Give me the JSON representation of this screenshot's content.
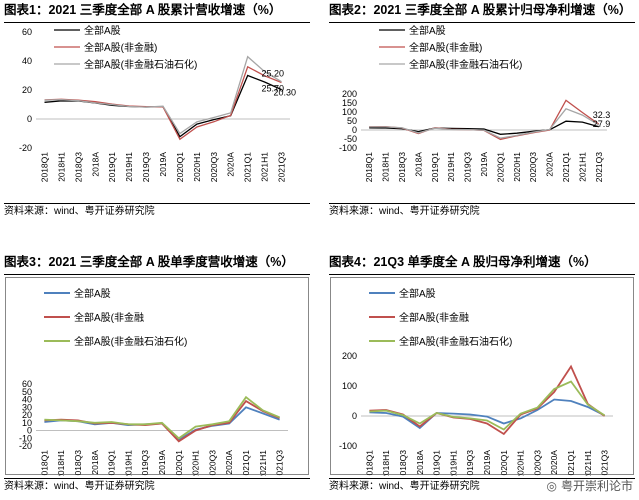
{
  "chart_data": [
    {
      "type": "line",
      "title": "图表1：2021 三季度全部 A 股累计营收增速（%）",
      "source": "资料来源：wind、粤开证券研究院",
      "categories": [
        "2018Q1",
        "2018H1",
        "2018Q3",
        "2018A",
        "2019Q1",
        "2019H1",
        "2019Q3",
        "2019A",
        "2020Q1",
        "2020H1",
        "2020Q3",
        "2020A",
        "2021Q1",
        "2021H1",
        "2021Q3"
      ],
      "ylim": [
        -20,
        60
      ],
      "yticks": [
        "-20",
        "0",
        "20",
        "40",
        "60"
      ],
      "grid": false,
      "framed": false,
      "legend_position": "top-center",
      "series": [
        {
          "name": "全部A股",
          "color": "#000000",
          "values": [
            11.5,
            12.5,
            12.4,
            11,
            9.4,
            8.6,
            8.3,
            8.5,
            -12.2,
            -3.5,
            -0.4,
            2.3,
            30,
            25.5,
            20.3
          ]
        },
        {
          "name": "全部A股(非金融)",
          "color": "#c0504d",
          "values": [
            13.2,
            13.6,
            13,
            11.9,
            10.3,
            9,
            8.5,
            8.4,
            -14,
            -5.5,
            -1.9,
            2.5,
            36,
            29.8,
            25.2
          ]
        },
        {
          "name": "全部A股(非金融石油石化)",
          "color": "#a6a6a6",
          "values": [
            13,
            13.3,
            12.6,
            11.1,
            9.9,
            8.6,
            8.2,
            8.8,
            -10,
            -2,
            1,
            4.2,
            43,
            32.7,
            25.7
          ]
        }
      ],
      "data_labels": [
        "25.20",
        "20.30",
        "25.70"
      ]
    },
    {
      "type": "line",
      "title": "图表2：2021 三季度全部 A 股累计归母净利增速（%）",
      "source": "资料来源：wind、粤开证券研究院",
      "categories": [
        "2018Q1",
        "2018H1",
        "2018Q3",
        "2018A",
        "2019Q1",
        "2019H1",
        "2019Q3",
        "2019A",
        "2020Q1",
        "2020H1",
        "2020Q3",
        "2020A",
        "2021Q1",
        "2021H1",
        "2021Q3"
      ],
      "ylim": [
        -100,
        200
      ],
      "yticks": [
        "-100",
        "-50",
        "0",
        "50",
        "100",
        "150",
        "200"
      ],
      "grid": false,
      "framed": false,
      "legend_position": "top-center",
      "series": [
        {
          "name": "全部A股",
          "color": "#000000",
          "values": [
            12,
            11,
            7.5,
            -9,
            11,
            9,
            8,
            5.4,
            -24,
            -18,
            -7,
            1.2,
            49,
            44,
            18
          ]
        },
        {
          "name": "全部A股(非金融)",
          "color": "#c0504d",
          "values": [
            18,
            19,
            11,
            -20,
            12,
            4,
            2,
            -2,
            -52,
            -32,
            -15,
            0,
            165,
            97,
            32.3
          ]
        },
        {
          "name": "全部A股(非金融石油石化)",
          "color": "#a6a6a6",
          "values": [
            17,
            17,
            12,
            -16,
            10,
            3,
            2,
            -1,
            -45,
            -30,
            -12,
            3,
            118,
            83,
            27.9
          ]
        }
      ],
      "data_labels": [
        "32.3",
        "27.9"
      ]
    },
    {
      "type": "line",
      "title": "图表3：2021 三季度全部 A 股单季度营收增速（%）",
      "source": "资料来源：wind、粤开证券研究院",
      "categories": [
        "2018Q1",
        "2018H1",
        "2018Q3",
        "2018A",
        "2019Q1",
        "2019H1",
        "2019Q3",
        "2019A",
        "2020Q1",
        "2020H1",
        "2020Q3",
        "2020A",
        "2021Q1",
        "2021H1",
        "2021Q3"
      ],
      "ylim": [
        -20,
        60
      ],
      "yticks": [
        "-20",
        "-10",
        "0",
        "10",
        "20",
        "30",
        "40",
        "50",
        "60"
      ],
      "grid": false,
      "framed": true,
      "legend_position": "top-left",
      "series": [
        {
          "name": "全部A股",
          "color": "#4f81bd",
          "values": [
            11,
            13,
            12,
            8,
            10,
            7,
            8,
            9,
            -12,
            1,
            6,
            9,
            30,
            22,
            14
          ]
        },
        {
          "name": "全部A股(非金融",
          "color": "#c0504d",
          "values": [
            13,
            14,
            13,
            9,
            10,
            8,
            7,
            9,
            -14,
            0,
            7,
            10,
            38,
            25,
            16
          ]
        },
        {
          "name": "全部A股(非金融石油石化)",
          "color": "#9bbb59",
          "values": [
            14,
            13,
            12,
            10,
            11,
            8,
            8,
            10,
            -10,
            5,
            8,
            12,
            43,
            26,
            17
          ]
        }
      ]
    },
    {
      "type": "line",
      "title": "图表4：21Q3 单季度全 A 股归母净利增速（%）",
      "source": "资料来源：wind、粤开证券研究院",
      "categories": [
        "2018Q1",
        "2018H1",
        "2018Q3",
        "2018A",
        "2019Q1",
        "2019H1",
        "2019Q3",
        "2019A",
        "2020Q1",
        "2020H1",
        "2020Q3",
        "2020A",
        "2021Q1",
        "2021H1",
        "2021Q3"
      ],
      "ylim": [
        -100,
        200
      ],
      "yticks": [
        "-100",
        "0",
        "100",
        "200"
      ],
      "grid": false,
      "framed": true,
      "legend_position": "top-left",
      "series": [
        {
          "name": "全部A股",
          "color": "#4f81bd",
          "values": [
            12,
            10,
            -2,
            -40,
            10,
            8,
            5,
            -2,
            -25,
            -8,
            20,
            55,
            50,
            30,
            2
          ]
        },
        {
          "name": "全部A股(非金融",
          "color": "#c0504d",
          "values": [
            18,
            20,
            5,
            -35,
            10,
            -5,
            -10,
            -25,
            -60,
            5,
            25,
            80,
            165,
            40,
            0
          ]
        },
        {
          "name": "全部A股(非金融石油石化)",
          "color": "#9bbb59",
          "values": [
            15,
            18,
            3,
            -25,
            10,
            -3,
            -8,
            -15,
            -45,
            8,
            28,
            90,
            115,
            38,
            2
          ]
        }
      ]
    }
  ],
  "watermark": "粤开崇利论市"
}
